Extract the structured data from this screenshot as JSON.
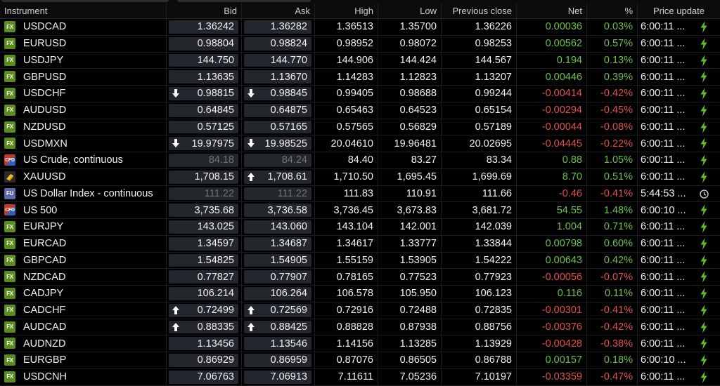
{
  "headers": {
    "instrument": "Instrument",
    "bid": "Bid",
    "ask": "Ask",
    "high": "High",
    "low": "Low",
    "prev": "Previous close",
    "net": "Net",
    "pct": "%",
    "update": "Price update"
  },
  "colors": {
    "positive": "#6cc24a",
    "negative": "#e0514b",
    "fx_badge": "#5a8d1e"
  },
  "rows": [
    {
      "badge": "FX",
      "icon": "fx-badge-icon",
      "name": "USDCAD",
      "bid": "1.36242",
      "ask": "1.36282",
      "high": "1.36513",
      "low": "1.35700",
      "prev": "1.36226",
      "net": "0.00036",
      "pct": "0.03%",
      "time": "6:00:11 ...",
      "sign": "pos",
      "bid_arrow": "",
      "ask_arrow": "",
      "stale": false,
      "status": "bolt"
    },
    {
      "badge": "FX",
      "icon": "fx-badge-icon",
      "name": "EURUSD",
      "bid": "0.98804",
      "ask": "0.98824",
      "high": "0.98952",
      "low": "0.98072",
      "prev": "0.98253",
      "net": "0.00562",
      "pct": "0.57%",
      "time": "6:00:11 ...",
      "sign": "pos",
      "bid_arrow": "",
      "ask_arrow": "",
      "stale": false,
      "status": "bolt"
    },
    {
      "badge": "FX",
      "icon": "fx-badge-icon",
      "name": "USDJPY",
      "bid": "144.750",
      "ask": "144.770",
      "high": "144.906",
      "low": "144.424",
      "prev": "144.567",
      "net": "0.194",
      "pct": "0.13%",
      "time": "6:00:11 ...",
      "sign": "pos",
      "bid_arrow": "",
      "ask_arrow": "",
      "stale": false,
      "status": "bolt"
    },
    {
      "badge": "FX",
      "icon": "fx-badge-icon",
      "name": "GBPUSD",
      "bid": "1.13635",
      "ask": "1.13670",
      "high": "1.14283",
      "low": "1.12823",
      "prev": "1.13207",
      "net": "0.00446",
      "pct": "0.39%",
      "time": "6:00:11 ...",
      "sign": "pos",
      "bid_arrow": "",
      "ask_arrow": "",
      "stale": false,
      "status": "bolt"
    },
    {
      "badge": "FX",
      "icon": "fx-badge-icon",
      "name": "USDCHF",
      "bid": "0.98815",
      "ask": "0.98845",
      "high": "0.99405",
      "low": "0.98688",
      "prev": "0.99244",
      "net": "-0.00414",
      "pct": "-0.42%",
      "time": "6:00:11 ...",
      "sign": "neg",
      "bid_arrow": "down",
      "ask_arrow": "down",
      "stale": false,
      "status": "bolt"
    },
    {
      "badge": "FX",
      "icon": "fx-badge-icon",
      "name": "AUDUSD",
      "bid": "0.64845",
      "ask": "0.64875",
      "high": "0.65463",
      "low": "0.64523",
      "prev": "0.65154",
      "net": "-0.00294",
      "pct": "-0.45%",
      "time": "6:00:11 ...",
      "sign": "neg",
      "bid_arrow": "",
      "ask_arrow": "",
      "stale": false,
      "status": "bolt"
    },
    {
      "badge": "FX",
      "icon": "fx-badge-icon",
      "name": "NZDUSD",
      "bid": "0.57125",
      "ask": "0.57165",
      "high": "0.57565",
      "low": "0.56829",
      "prev": "0.57189",
      "net": "-0.00044",
      "pct": "-0.08%",
      "time": "6:00:11 ...",
      "sign": "neg",
      "bid_arrow": "",
      "ask_arrow": "",
      "stale": false,
      "status": "bolt"
    },
    {
      "badge": "FX",
      "icon": "fx-badge-icon",
      "name": "USDMXN",
      "bid": "19.97975",
      "ask": "19.98525",
      "high": "20.04610",
      "low": "19.96481",
      "prev": "20.02695",
      "net": "-0.04445",
      "pct": "-0.22%",
      "time": "6:00:11 ...",
      "sign": "neg",
      "bid_arrow": "down",
      "ask_arrow": "down",
      "stale": false,
      "status": "bolt"
    },
    {
      "badge": "CFD",
      "icon": "cfd-badge-icon",
      "name": "US Crude, continuous",
      "bid": "84.18",
      "ask": "84.24",
      "high": "84.40",
      "low": "83.27",
      "prev": "83.34",
      "net": "0.88",
      "pct": "1.05%",
      "time": "6:00:11 ...",
      "sign": "pos",
      "bid_arrow": "",
      "ask_arrow": "",
      "stale": true,
      "status": "bolt"
    },
    {
      "badge": "",
      "icon": "gold-bar-icon",
      "name": "XAUUSD",
      "bid": "1,708.15",
      "ask": "1,708.61",
      "high": "1,710.50",
      "low": "1,695.45",
      "prev": "1,699.69",
      "net": "8.70",
      "pct": "0.51%",
      "time": "6:00:11 ...",
      "sign": "pos",
      "bid_arrow": "",
      "ask_arrow": "up",
      "stale": false,
      "status": "bolt"
    },
    {
      "badge": "FU",
      "icon": "futures-badge-icon",
      "name": "US Dollar Index - continuous",
      "bid": "111.22",
      "ask": "111.22",
      "high": "111.83",
      "low": "110.91",
      "prev": "111.66",
      "net": "-0.46",
      "pct": "-0.41%",
      "time": "5:44:53 ...",
      "sign": "neg",
      "bid_arrow": "",
      "ask_arrow": "",
      "stale": true,
      "status": "clock"
    },
    {
      "badge": "CFD",
      "icon": "cfd-badge-icon",
      "name": "US 500",
      "bid": "3,735.68",
      "ask": "3,736.58",
      "high": "3,736.45",
      "low": "3,673.83",
      "prev": "3,681.72",
      "net": "54.55",
      "pct": "1.48%",
      "time": "6:00:10 ...",
      "sign": "pos",
      "bid_arrow": "",
      "ask_arrow": "",
      "stale": false,
      "status": "bolt"
    },
    {
      "badge": "FX",
      "icon": "fx-badge-icon",
      "name": "EURJPY",
      "bid": "143.025",
      "ask": "143.060",
      "high": "143.104",
      "low": "142.001",
      "prev": "142.039",
      "net": "1.004",
      "pct": "0.71%",
      "time": "6:00:11 ...",
      "sign": "pos",
      "bid_arrow": "",
      "ask_arrow": "",
      "stale": false,
      "status": "bolt"
    },
    {
      "badge": "FX",
      "icon": "fx-badge-icon",
      "name": "EURCAD",
      "bid": "1.34597",
      "ask": "1.34687",
      "high": "1.34617",
      "low": "1.33777",
      "prev": "1.33844",
      "net": "0.00798",
      "pct": "0.60%",
      "time": "6:00:11 ...",
      "sign": "pos",
      "bid_arrow": "",
      "ask_arrow": "",
      "stale": false,
      "status": "bolt"
    },
    {
      "badge": "FX",
      "icon": "fx-badge-icon",
      "name": "GBPCAD",
      "bid": "1.54825",
      "ask": "1.54905",
      "high": "1.55159",
      "low": "1.53905",
      "prev": "1.54222",
      "net": "0.00643",
      "pct": "0.42%",
      "time": "6:00:11 ...",
      "sign": "pos",
      "bid_arrow": "",
      "ask_arrow": "",
      "stale": false,
      "status": "bolt"
    },
    {
      "badge": "FX",
      "icon": "fx-badge-icon",
      "name": "NZDCAD",
      "bid": "0.77827",
      "ask": "0.77907",
      "high": "0.78165",
      "low": "0.77523",
      "prev": "0.77923",
      "net": "-0.00056",
      "pct": "-0.07%",
      "time": "6:00:11 ...",
      "sign": "neg",
      "bid_arrow": "",
      "ask_arrow": "",
      "stale": false,
      "status": "bolt"
    },
    {
      "badge": "FX",
      "icon": "fx-badge-icon",
      "name": "CADJPY",
      "bid": "106.214",
      "ask": "106.264",
      "high": "106.578",
      "low": "105.950",
      "prev": "106.123",
      "net": "0.116",
      "pct": "0.11%",
      "time": "6:00:11 ...",
      "sign": "pos",
      "bid_arrow": "",
      "ask_arrow": "",
      "stale": false,
      "status": "bolt"
    },
    {
      "badge": "FX",
      "icon": "fx-badge-icon",
      "name": "CADCHF",
      "bid": "0.72499",
      "ask": "0.72569",
      "high": "0.72916",
      "low": "0.72488",
      "prev": "0.72835",
      "net": "-0.00301",
      "pct": "-0.41%",
      "time": "6:00:11 ...",
      "sign": "neg",
      "bid_arrow": "up",
      "ask_arrow": "up",
      "stale": false,
      "status": "bolt"
    },
    {
      "badge": "FX",
      "icon": "fx-badge-icon",
      "name": "AUDCAD",
      "bid": "0.88335",
      "ask": "0.88425",
      "high": "0.88828",
      "low": "0.87938",
      "prev": "0.88756",
      "net": "-0.00376",
      "pct": "-0.42%",
      "time": "6:00:11 ...",
      "sign": "neg",
      "bid_arrow": "up",
      "ask_arrow": "up",
      "stale": false,
      "status": "bolt"
    },
    {
      "badge": "FX",
      "icon": "fx-badge-icon",
      "name": "AUDNZD",
      "bid": "1.13456",
      "ask": "1.13546",
      "high": "1.14156",
      "low": "1.13285",
      "prev": "1.13929",
      "net": "-0.00428",
      "pct": "-0.38%",
      "time": "6:00:11 ...",
      "sign": "neg",
      "bid_arrow": "",
      "ask_arrow": "",
      "stale": false,
      "status": "bolt"
    },
    {
      "badge": "FX",
      "icon": "fx-badge-icon",
      "name": "EURGBP",
      "bid": "0.86929",
      "ask": "0.86959",
      "high": "0.87076",
      "low": "0.86505",
      "prev": "0.86788",
      "net": "0.00157",
      "pct": "0.18%",
      "time": "6:00:10 ...",
      "sign": "pos",
      "bid_arrow": "",
      "ask_arrow": "",
      "stale": false,
      "status": "bolt"
    },
    {
      "badge": "FX",
      "icon": "fx-badge-icon",
      "name": "USDCNH",
      "bid": "7.06763",
      "ask": "7.06913",
      "high": "7.11611",
      "low": "7.05236",
      "prev": "7.10197",
      "net": "-0.03359",
      "pct": "-0.47%",
      "time": "6:00:11 ...",
      "sign": "neg",
      "bid_arrow": "",
      "ask_arrow": "",
      "stale": false,
      "status": "bolt"
    }
  ]
}
